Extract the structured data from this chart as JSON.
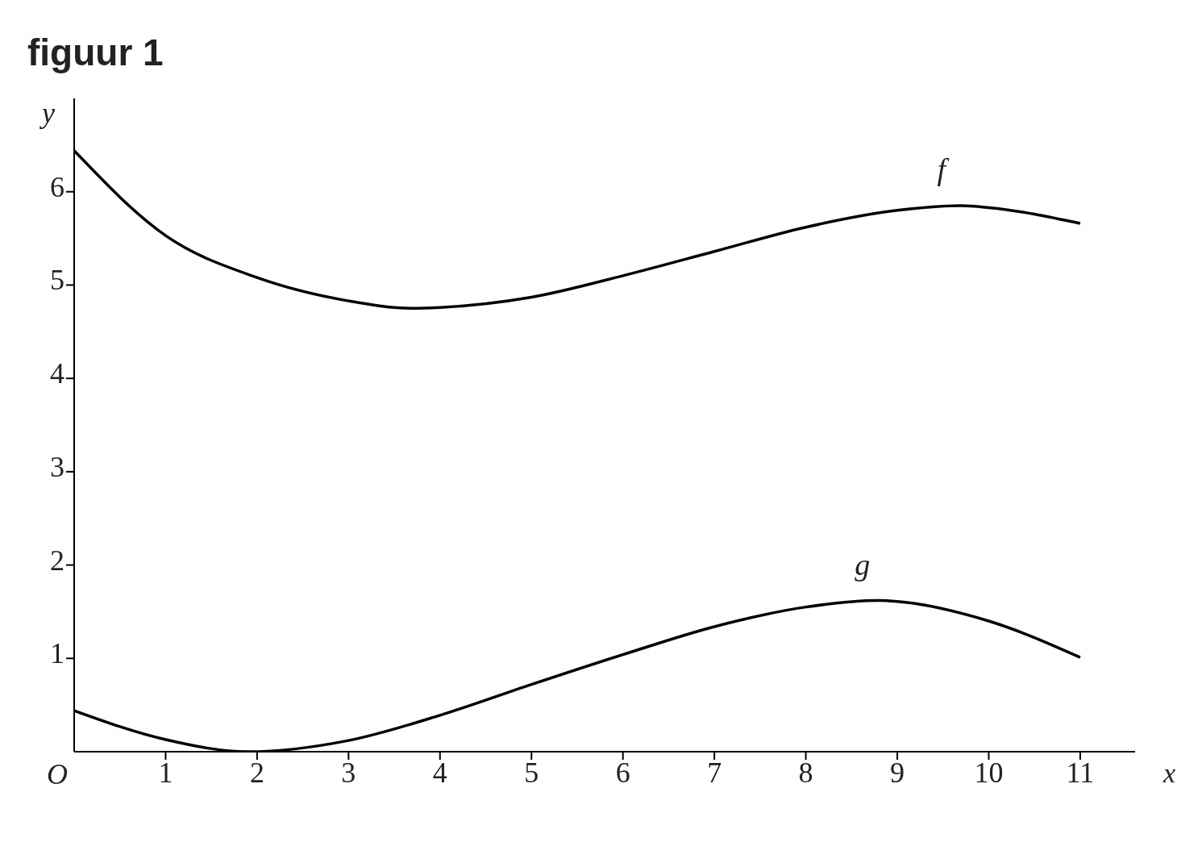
{
  "chart_data": {
    "type": "line",
    "title": "figuur 1",
    "xlabel": "x",
    "ylabel": "y",
    "xlim": [
      0,
      11.6
    ],
    "ylim": [
      0,
      7
    ],
    "xticks": [
      1,
      2,
      3,
      4,
      5,
      6,
      7,
      8,
      9,
      10,
      11
    ],
    "annotations": [
      "O"
    ],
    "yticks": [
      1,
      2,
      3,
      4,
      5,
      6
    ],
    "grid": false,
    "legend": false,
    "marker": "none",
    "line_style": "solid",
    "series": [
      {
        "name": "f",
        "color": "#000000",
        "x": [
          0,
          1,
          2,
          3,
          3.7,
          4,
          5,
          6,
          7,
          8,
          9,
          9.7,
          10,
          11
        ],
        "values": [
          6.44,
          5.53,
          5.08,
          4.83,
          4.75,
          4.76,
          4.87,
          5.1,
          5.36,
          5.62,
          5.8,
          5.85,
          5.83,
          5.66
        ]
      },
      {
        "name": "g",
        "color": "#000000",
        "x": [
          0,
          1,
          1.9,
          3,
          4,
          5,
          6,
          7,
          8,
          8.8,
          9,
          10,
          11
        ],
        "values": [
          0.44,
          0.13,
          0,
          0.12,
          0.39,
          0.72,
          1.04,
          1.34,
          1.55,
          1.62,
          1.61,
          1.4,
          1.01
        ]
      }
    ]
  }
}
